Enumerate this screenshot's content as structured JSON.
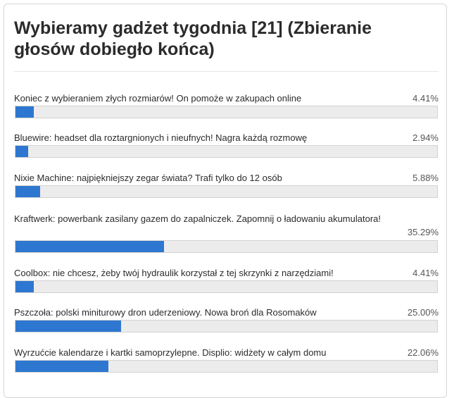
{
  "poll": {
    "title": "Wybieramy gadżet tygodnia [21] (Zbieranie głosów dobiegło końca)",
    "options": [
      {
        "label": "Koniec z wybieraniem złych rozmiarów! On pomoże w zakupach online",
        "percent_text": "4.41%",
        "value": 4.41
      },
      {
        "label": "Bluewire: headset dla roztargnionych i nieufnych! Nagra każdą rozmowę",
        "percent_text": "2.94%",
        "value": 2.94
      },
      {
        "label": "Nixie Machine: najpiękniejszy zegar świata? Trafi tylko do 12 osób",
        "percent_text": "5.88%",
        "value": 5.88
      },
      {
        "label": "Kraftwerk: powerbank zasilany gazem do zapalniczek. Zapomnij o ładowaniu akumulatora!",
        "percent_text": "35.29%",
        "value": 35.29
      },
      {
        "label": "Coolbox: nie chcesz, żeby twój hydraulik korzystał z tej skrzynki z narzędziami!",
        "percent_text": "4.41%",
        "value": 4.41
      },
      {
        "label": "Pszczoła: polski miniturowy dron uderzeniowy. Nowa broń dla Rosomaków",
        "percent_text": "25.00%",
        "value": 25.0
      },
      {
        "label": "Wyrzućcie kalendarze i kartki samoprzylepne. Displio: widżety w całym domu",
        "percent_text": "22.06%",
        "value": 22.06
      }
    ],
    "colors": {
      "bar_fill": "#2e77d0",
      "bar_track": "#ececec"
    }
  }
}
